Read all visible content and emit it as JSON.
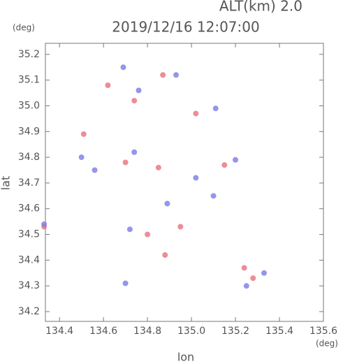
{
  "chart_data": {
    "type": "scatter",
    "title": "2019/12/16 12:07:00",
    "subtitle": "ALT(km) 2.0",
    "y_unit": "(deg)",
    "x_unit": "(deg)",
    "xlabel": "lon",
    "ylabel": "lat",
    "xlim": [
      134.336,
      135.6
    ],
    "ylim": [
      34.162,
      35.243
    ],
    "xticks": [
      134.4,
      134.6,
      134.8,
      {
        "value": 135,
        "label": "135.0"
      },
      135.2,
      135.4,
      135.6
    ],
    "yticks": [
      34.2,
      34.3,
      34.4,
      34.5,
      34.6,
      34.7,
      34.8,
      34.9,
      {
        "value": 35,
        "label": "35.0"
      },
      35.1,
      35.2
    ],
    "series": [
      {
        "color": "#e8707a",
        "x": [
          134.74,
          134.87,
          135.02,
          134.33,
          134.85,
          134.7,
          134.8,
          135.28,
          135.24,
          134.62,
          134.51,
          134.95,
          135.15,
          134.88
        ],
        "y": [
          35.02,
          35.12,
          34.97,
          34.53,
          34.76,
          34.78,
          34.5,
          34.33,
          34.37,
          35.08,
          34.89,
          34.53,
          34.77,
          34.42
        ]
      },
      {
        "color": "#7a7ae8",
        "x": [
          134.69,
          134.93,
          134.76,
          135.11,
          134.5,
          134.74,
          135.02,
          135.1,
          134.72,
          135.33,
          135.25,
          134.7,
          134.33,
          134.89,
          134.56,
          135.2
        ],
        "y": [
          35.15,
          35.12,
          35.06,
          34.99,
          34.8,
          34.82,
          34.72,
          34.65,
          34.52,
          34.35,
          34.3,
          34.31,
          34.54,
          34.62,
          34.75,
          34.79
        ]
      }
    ]
  }
}
